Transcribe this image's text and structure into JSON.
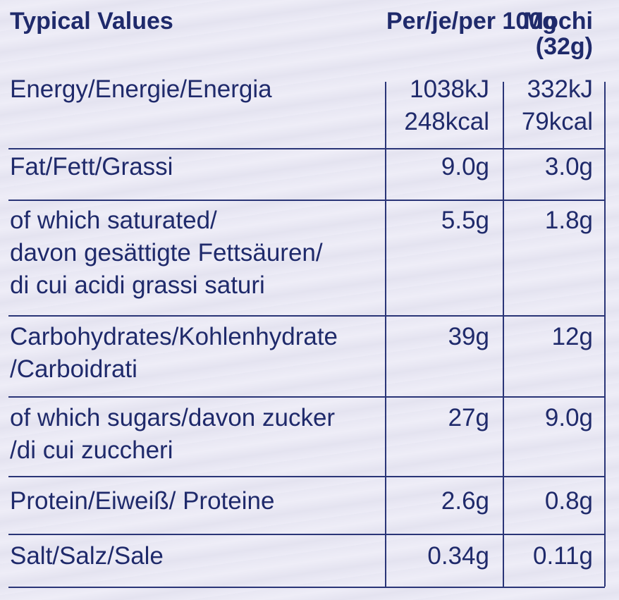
{
  "table": {
    "header": [
      [
        "Typical Values"
      ],
      [
        "Per/je/per 100g"
      ],
      [
        "Mochi",
        "(32g)"
      ]
    ],
    "rows": [
      [
        [
          "Energy/Energie/Energia"
        ],
        [
          "1038kJ",
          "248kcal"
        ],
        [
          "332kJ",
          "79kcal"
        ]
      ],
      [
        [
          "Fat/Fett/Grassi"
        ],
        [
          "9.0g"
        ],
        [
          "3.0g"
        ]
      ],
      [
        [
          "of which saturated/",
          "davon gesättigte Fettsäuren/",
          "di cui acidi grassi saturi"
        ],
        [
          "5.5g"
        ],
        [
          "1.8g"
        ]
      ],
      [
        [
          "Carbohydrates/Kohlenhydrate",
          "/Carboidrati"
        ],
        [
          "39g"
        ],
        [
          "12g"
        ]
      ],
      [
        [
          "of which sugars/davon zucker",
          "/di cui zuccheri"
        ],
        [
          "27g"
        ],
        [
          "9.0g"
        ]
      ],
      [
        [
          "Protein/Eiweiß/ Proteine"
        ],
        [
          "2.6g"
        ],
        [
          "0.8g"
        ]
      ],
      [
        [
          "Salt/Salz/Sale"
        ],
        [
          "0.34g"
        ],
        [
          "0.11g"
        ]
      ]
    ]
  }
}
